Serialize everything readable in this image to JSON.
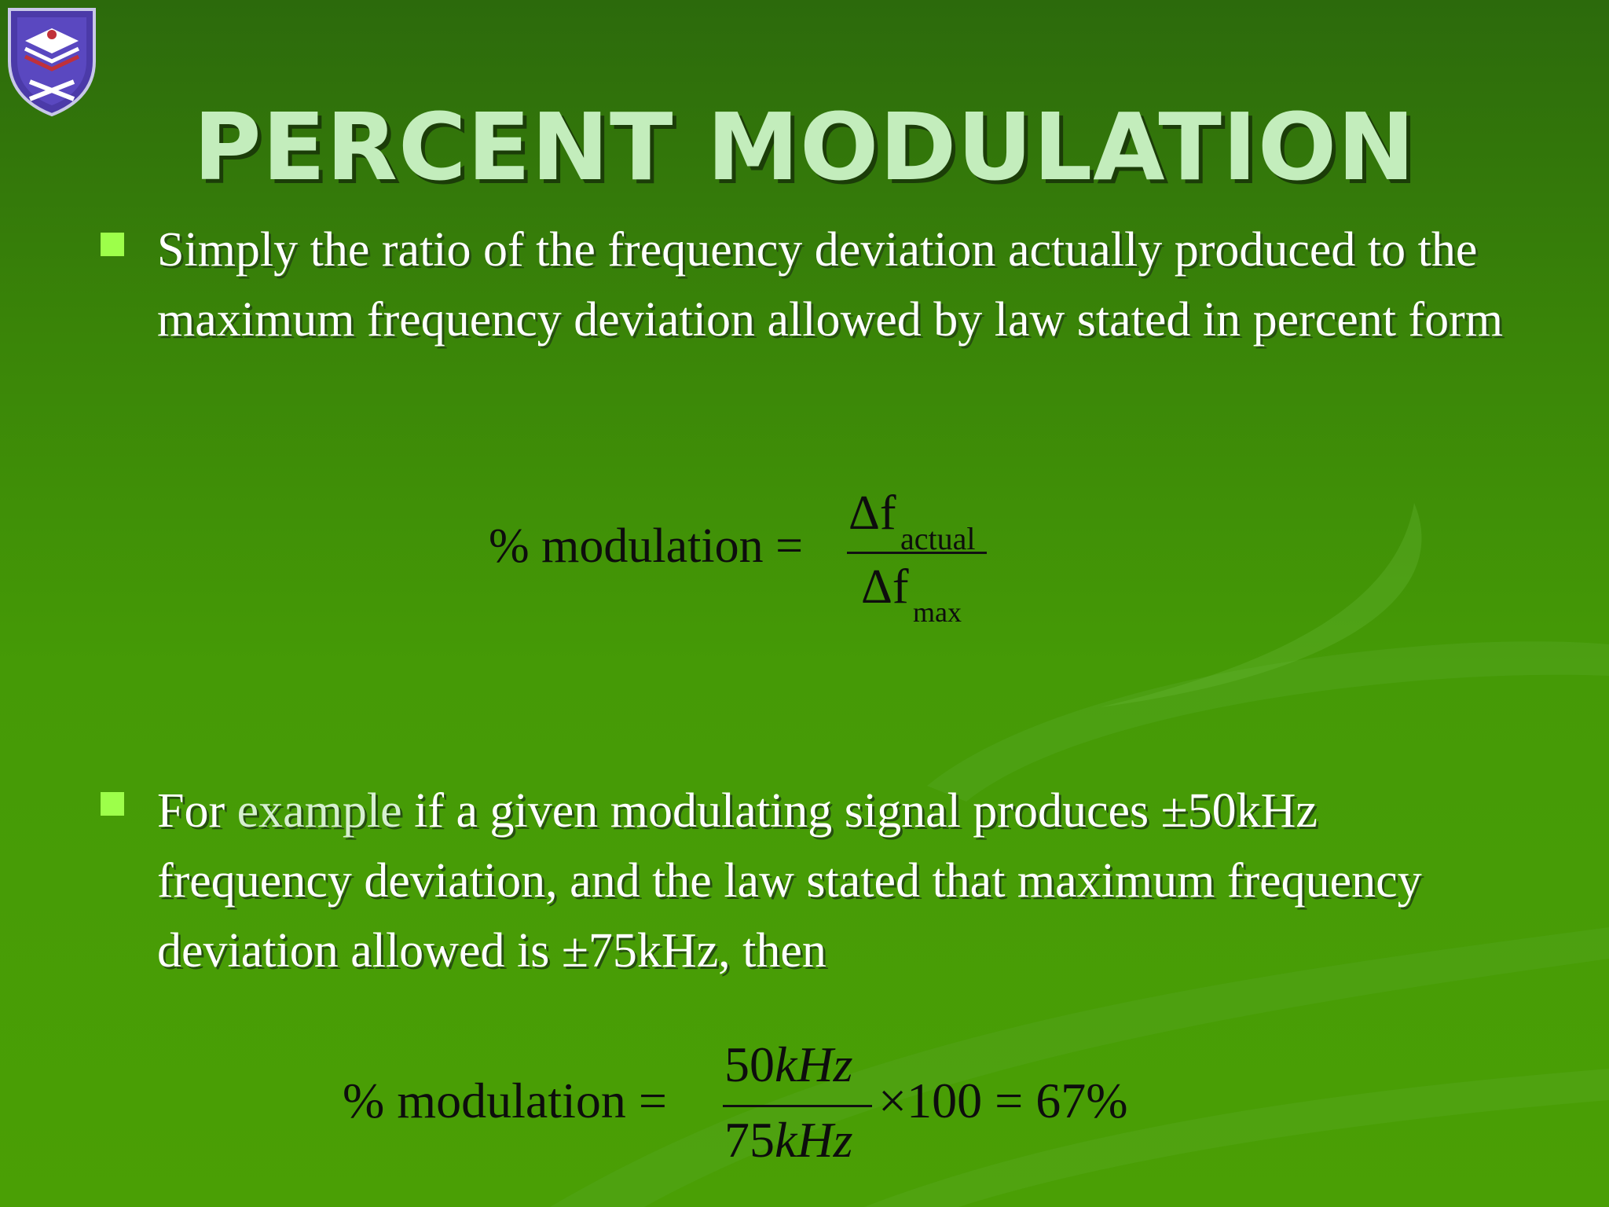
{
  "title": "PERCENT MODULATION",
  "bullets": [
    {
      "text": "Simply the ratio of the frequency deviation actually produced to the maximum frequency deviation allowed by law stated in percent form"
    },
    {
      "text_before": "For ",
      "text_highlight": "example",
      "text_after": " if a given modulating signal produces ±50kHz frequency deviation, and the law stated that maximum frequency deviation allowed is ±75kHz, then"
    }
  ],
  "formula1": {
    "lhs": "% modulation =",
    "num_symbol": "Δf",
    "num_sub": "actual",
    "den_symbol": "Δf",
    "den_sub": "max"
  },
  "formula2": {
    "lhs": "% modulation =",
    "num_value": "50",
    "num_unit": "kHz",
    "den_value": "75",
    "den_unit": "kHz",
    "rhs": "×100 = 67%"
  },
  "colors": {
    "background": "#3f8f07",
    "title": "#c3edbc",
    "bullet": "#9dff4a",
    "text": "#ffffff",
    "equation": "#0d0d0d"
  },
  "logo": {
    "icon": "university-crest-icon"
  }
}
